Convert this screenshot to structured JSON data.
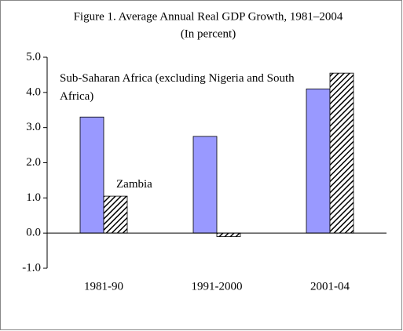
{
  "chart_data": {
    "type": "bar",
    "title": "Figure 1. Average Annual Real GDP Growth, 1981–2004",
    "subtitle": "(In percent)",
    "categories": [
      "1981-90",
      "1991-2000",
      "2001-04"
    ],
    "series": [
      {
        "name": "Sub-Saharan Africa (excluding Nigeria and South Africa)",
        "color": "#9999ff",
        "values": [
          3.3,
          2.75,
          4.1
        ]
      },
      {
        "name": "Zambia",
        "color": "hatch",
        "values": [
          1.05,
          -0.1,
          4.55
        ]
      }
    ],
    "ylim": [
      -1,
      5
    ],
    "yticks": [
      {
        "value": -1,
        "label": "-1.0"
      },
      {
        "value": 0,
        "label": "0.0"
      },
      {
        "value": 1,
        "label": "1.0"
      },
      {
        "value": 2,
        "label": "2.0"
      },
      {
        "value": 3,
        "label": "3.0"
      },
      {
        "value": 4,
        "label": "4.0"
      },
      {
        "value": 5,
        "label": "5.0"
      }
    ],
    "grid": false
  }
}
